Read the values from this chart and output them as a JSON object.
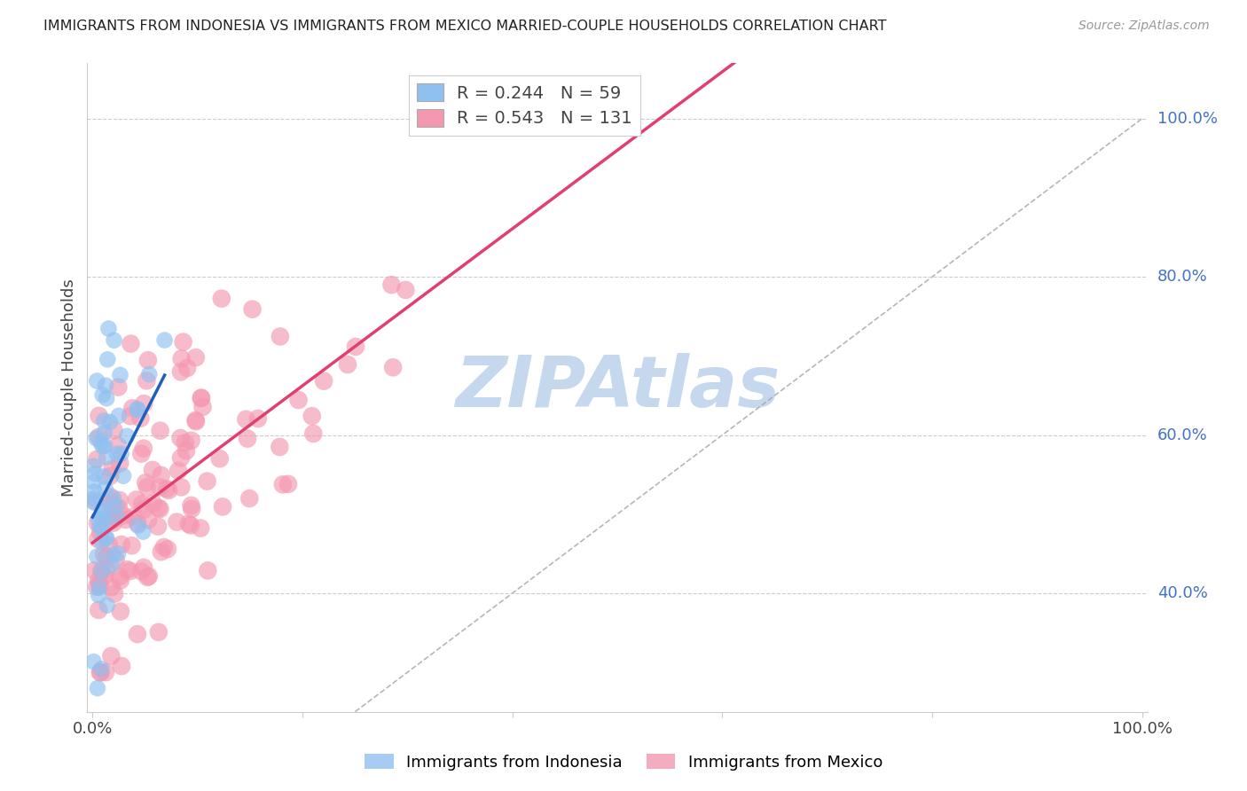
{
  "title": "IMMIGRANTS FROM INDONESIA VS IMMIGRANTS FROM MEXICO MARRIED-COUPLE HOUSEHOLDS CORRELATION CHART",
  "source": "Source: ZipAtlas.com",
  "ylabel": "Married-couple Households",
  "ytick_labels": [
    "40.0%",
    "60.0%",
    "80.0%",
    "100.0%"
  ],
  "ytick_values": [
    0.4,
    0.6,
    0.8,
    1.0
  ],
  "R_indonesia": 0.244,
  "N_indonesia": 59,
  "R_mexico": 0.543,
  "N_mexico": 131,
  "color_indonesia": "#90C0F0",
  "color_mexico": "#F498B0",
  "line_color_indonesia": "#2060BB",
  "line_color_mexico": "#E04070",
  "diagonal_color": "#AAAAAA",
  "background_color": "#FFFFFF",
  "watermark_color": "#C5D8EE",
  "xlim": [
    0.0,
    1.0
  ],
  "ylim": [
    0.25,
    1.05
  ],
  "seed_indo": 7,
  "seed_mex": 3
}
